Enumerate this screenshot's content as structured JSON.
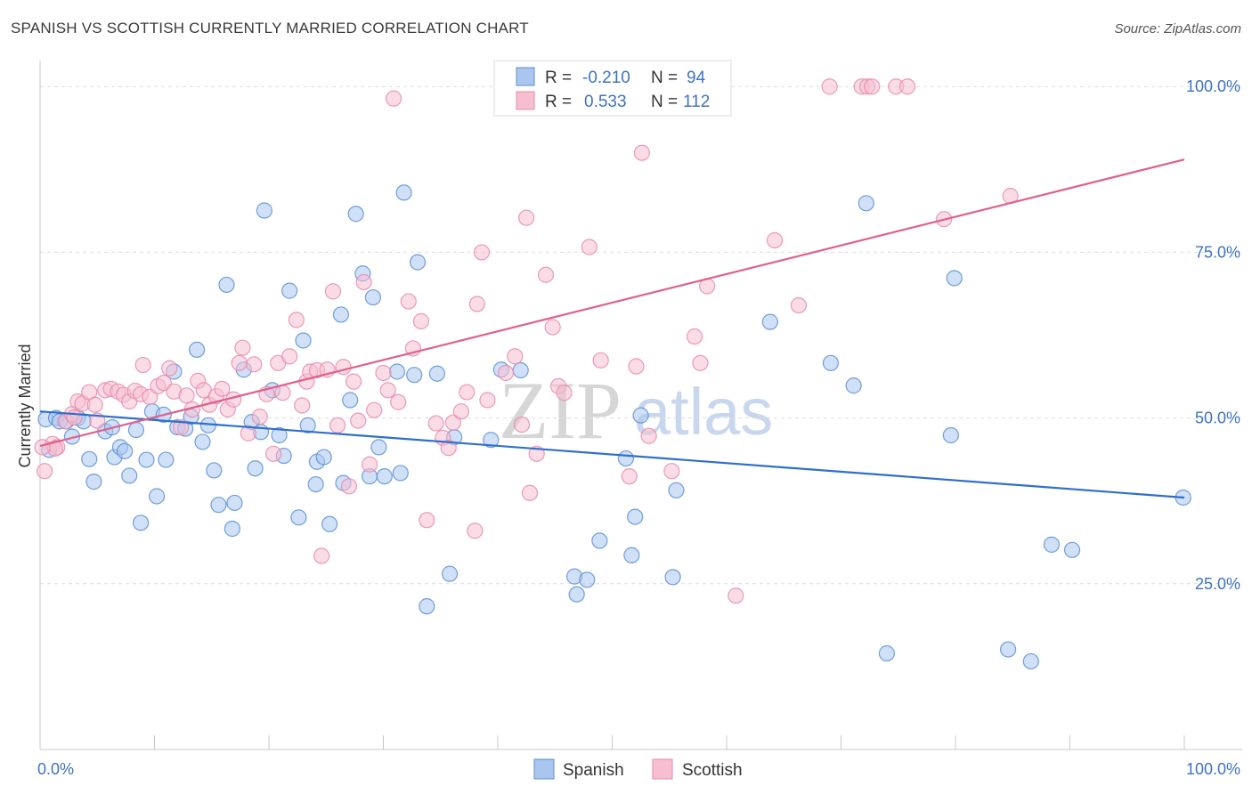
{
  "title": "SPANISH VS SCOTTISH CURRENTLY MARRIED CORRELATION CHART",
  "source": "Source: ZipAtlas.com",
  "watermark": {
    "zip": "ZIP",
    "atlas": "atlas"
  },
  "legend_stats": {
    "r_label": "R =",
    "n_label": "N =",
    "rows": [
      {
        "r": "-0.210",
        "n": "94"
      },
      {
        "r": "0.533",
        "n": "112"
      }
    ]
  },
  "chart_data": {
    "type": "scatter",
    "title": "SPANISH VS SCOTTISH CURRENTLY MARRIED CORRELATION CHART",
    "xlabel": "",
    "ylabel": "Currently Married",
    "xlim": [
      0,
      100
    ],
    "ylim": [
      0,
      105
    ],
    "x_tick_labels": [
      "0.0%",
      "100.0%"
    ],
    "y_tick_labels": [
      "25.0%",
      "50.0%",
      "75.0%",
      "100.0%"
    ],
    "y_ticks": [
      25,
      50,
      75,
      100
    ],
    "grid": true,
    "legend_position": "bottom",
    "series": [
      {
        "name": "Spanish",
        "color": "#5b8fd6",
        "fill": "#aac6ee",
        "line_color": "#2f6fcc",
        "trend": [
          [
            0,
            51
          ],
          [
            100,
            38
          ]
        ],
        "points": [
          [
            0.5,
            49.8
          ],
          [
            1.4,
            50.0
          ],
          [
            1.7,
            49.5
          ],
          [
            2.3,
            49.5
          ],
          [
            2.8,
            47.2
          ],
          [
            3.3,
            50.0
          ],
          [
            3.8,
            49.5
          ],
          [
            4.3,
            43.8
          ],
          [
            4.7,
            40.4
          ],
          [
            5.7,
            48.0
          ],
          [
            6.3,
            48.6
          ],
          [
            6.5,
            44.1
          ],
          [
            7.0,
            45.6
          ],
          [
            7.4,
            45.0
          ],
          [
            7.8,
            41.3
          ],
          [
            8.4,
            48.2
          ],
          [
            8.8,
            34.2
          ],
          [
            9.3,
            43.7
          ],
          [
            9.8,
            51.0
          ],
          [
            10.2,
            38.2
          ],
          [
            10.8,
            50.5
          ],
          [
            11.0,
            43.7
          ],
          [
            11.7,
            57.0
          ],
          [
            12.0,
            48.6
          ],
          [
            12.7,
            48.4
          ],
          [
            13.2,
            50.2
          ],
          [
            13.7,
            60.3
          ],
          [
            14.2,
            46.4
          ],
          [
            14.7,
            48.9
          ],
          [
            15.2,
            42.1
          ],
          [
            15.6,
            36.9
          ],
          [
            16.3,
            70.1
          ],
          [
            16.8,
            33.3
          ],
          [
            17.0,
            37.2
          ],
          [
            17.8,
            57.3
          ],
          [
            18.5,
            49.4
          ],
          [
            18.8,
            42.4
          ],
          [
            19.3,
            47.9
          ],
          [
            19.6,
            81.3
          ],
          [
            20.3,
            54.2
          ],
          [
            20.9,
            47.4
          ],
          [
            21.3,
            44.3
          ],
          [
            21.8,
            69.2
          ],
          [
            22.6,
            35.0
          ],
          [
            23.0,
            61.7
          ],
          [
            23.4,
            48.9
          ],
          [
            24.1,
            40.0
          ],
          [
            24.2,
            43.4
          ],
          [
            24.8,
            44.1
          ],
          [
            25.3,
            34.0
          ],
          [
            26.3,
            65.6
          ],
          [
            26.5,
            40.2
          ],
          [
            27.1,
            52.7
          ],
          [
            27.6,
            80.8
          ],
          [
            28.2,
            71.8
          ],
          [
            28.8,
            41.2
          ],
          [
            29.1,
            68.2
          ],
          [
            29.6,
            45.6
          ],
          [
            30.1,
            41.2
          ],
          [
            31.2,
            57.0
          ],
          [
            31.5,
            41.7
          ],
          [
            31.8,
            84.0
          ],
          [
            32.7,
            56.5
          ],
          [
            33.0,
            73.5
          ],
          [
            33.8,
            21.6
          ],
          [
            34.7,
            56.7
          ],
          [
            35.8,
            26.5
          ],
          [
            36.2,
            47.1
          ],
          [
            39.4,
            46.7
          ],
          [
            40.3,
            57.3
          ],
          [
            42.0,
            57.2
          ],
          [
            46.7,
            26.1
          ],
          [
            46.9,
            23.4
          ],
          [
            47.8,
            25.6
          ],
          [
            48.9,
            31.5
          ],
          [
            51.2,
            43.9
          ],
          [
            51.7,
            29.3
          ],
          [
            52.0,
            35.1
          ],
          [
            52.5,
            50.4
          ],
          [
            55.3,
            26.0
          ],
          [
            55.6,
            39.1
          ],
          [
            63.8,
            64.5
          ],
          [
            69.1,
            58.3
          ],
          [
            71.1,
            54.9
          ],
          [
            72.2,
            82.4
          ],
          [
            74.0,
            14.5
          ],
          [
            79.6,
            47.4
          ],
          [
            79.9,
            71.1
          ],
          [
            84.6,
            15.1
          ],
          [
            88.4,
            30.9
          ],
          [
            86.6,
            13.3
          ],
          [
            90.2,
            30.1
          ],
          [
            99.9,
            38.0
          ],
          [
            0.8,
            45.2
          ]
        ]
      },
      {
        "name": "Scottish",
        "color": "#e88aaa",
        "fill": "#f6bfd1",
        "line_color": "#e0608c",
        "trend": [
          [
            0,
            45.8
          ],
          [
            100,
            89
          ]
        ],
        "points": [
          [
            0.4,
            42.0
          ],
          [
            1.1,
            46.1
          ],
          [
            1.5,
            45.6
          ],
          [
            2.2,
            49.5
          ],
          [
            2.8,
            50.6
          ],
          [
            3.3,
            52.5
          ],
          [
            3.7,
            52.2
          ],
          [
            4.3,
            53.9
          ],
          [
            4.8,
            52.0
          ],
          [
            5.0,
            49.6
          ],
          [
            5.7,
            54.2
          ],
          [
            6.2,
            54.4
          ],
          [
            6.8,
            54.0
          ],
          [
            7.3,
            53.5
          ],
          [
            7.8,
            52.5
          ],
          [
            8.3,
            54.1
          ],
          [
            8.8,
            53.6
          ],
          [
            9.0,
            58.0
          ],
          [
            9.6,
            53.2
          ],
          [
            10.3,
            54.8
          ],
          [
            10.8,
            55.3
          ],
          [
            11.3,
            57.5
          ],
          [
            11.7,
            54.0
          ],
          [
            12.3,
            48.6
          ],
          [
            12.8,
            53.4
          ],
          [
            13.3,
            51.3
          ],
          [
            13.8,
            55.6
          ],
          [
            14.3,
            54.2
          ],
          [
            14.8,
            52.0
          ],
          [
            15.4,
            53.3
          ],
          [
            15.9,
            54.4
          ],
          [
            16.4,
            51.3
          ],
          [
            16.9,
            52.8
          ],
          [
            17.4,
            58.3
          ],
          [
            17.7,
            60.6
          ],
          [
            18.2,
            47.7
          ],
          [
            18.7,
            58.1
          ],
          [
            19.2,
            50.2
          ],
          [
            19.8,
            53.6
          ],
          [
            20.4,
            44.6
          ],
          [
            20.8,
            58.3
          ],
          [
            21.2,
            53.8
          ],
          [
            21.8,
            59.3
          ],
          [
            22.4,
            64.8
          ],
          [
            22.9,
            51.9
          ],
          [
            23.3,
            55.5
          ],
          [
            23.6,
            57.0
          ],
          [
            24.2,
            57.2
          ],
          [
            24.6,
            29.2
          ],
          [
            25.1,
            57.3
          ],
          [
            25.6,
            69.1
          ],
          [
            26.0,
            48.9
          ],
          [
            26.5,
            57.7
          ],
          [
            27.0,
            39.7
          ],
          [
            27.4,
            55.5
          ],
          [
            27.8,
            49.6
          ],
          [
            28.3,
            70.5
          ],
          [
            28.8,
            43.0
          ],
          [
            29.2,
            51.2
          ],
          [
            30.0,
            56.8
          ],
          [
            30.4,
            54.2
          ],
          [
            30.9,
            98.2
          ],
          [
            31.3,
            52.4
          ],
          [
            32.2,
            67.6
          ],
          [
            32.6,
            60.5
          ],
          [
            33.3,
            64.6
          ],
          [
            33.8,
            34.6
          ],
          [
            34.6,
            49.2
          ],
          [
            35.2,
            47.0
          ],
          [
            35.7,
            45.5
          ],
          [
            36.1,
            49.3
          ],
          [
            36.8,
            51.0
          ],
          [
            37.3,
            53.9
          ],
          [
            38.0,
            33.0
          ],
          [
            38.2,
            67.2
          ],
          [
            38.6,
            75.0
          ],
          [
            39.1,
            52.7
          ],
          [
            40.7,
            56.8
          ],
          [
            41.5,
            59.3
          ],
          [
            42.1,
            49.0
          ],
          [
            42.5,
            80.2
          ],
          [
            42.8,
            38.7
          ],
          [
            43.4,
            44.6
          ],
          [
            44.2,
            71.6
          ],
          [
            44.8,
            63.7
          ],
          [
            45.3,
            54.8
          ],
          [
            45.8,
            53.8
          ],
          [
            47.2,
            100.0
          ],
          [
            48.0,
            75.8
          ],
          [
            49.0,
            58.7
          ],
          [
            51.5,
            41.2
          ],
          [
            52.1,
            57.8
          ],
          [
            52.6,
            90.0
          ],
          [
            53.2,
            47.3
          ],
          [
            55.2,
            42.0
          ],
          [
            57.2,
            62.3
          ],
          [
            57.7,
            58.3
          ],
          [
            58.3,
            69.9
          ],
          [
            60.8,
            23.2
          ],
          [
            64.2,
            76.8
          ],
          [
            66.3,
            67.0
          ],
          [
            69.0,
            100.0
          ],
          [
            71.8,
            100.0
          ],
          [
            72.3,
            100.0
          ],
          [
            72.7,
            100.0
          ],
          [
            74.8,
            100.0
          ],
          [
            75.8,
            100.0
          ],
          [
            79.0,
            80.0
          ],
          [
            84.8,
            83.5
          ],
          [
            1.3,
            45.4
          ],
          [
            0.2,
            45.6
          ],
          [
            3.0,
            50.1
          ]
        ]
      }
    ]
  }
}
